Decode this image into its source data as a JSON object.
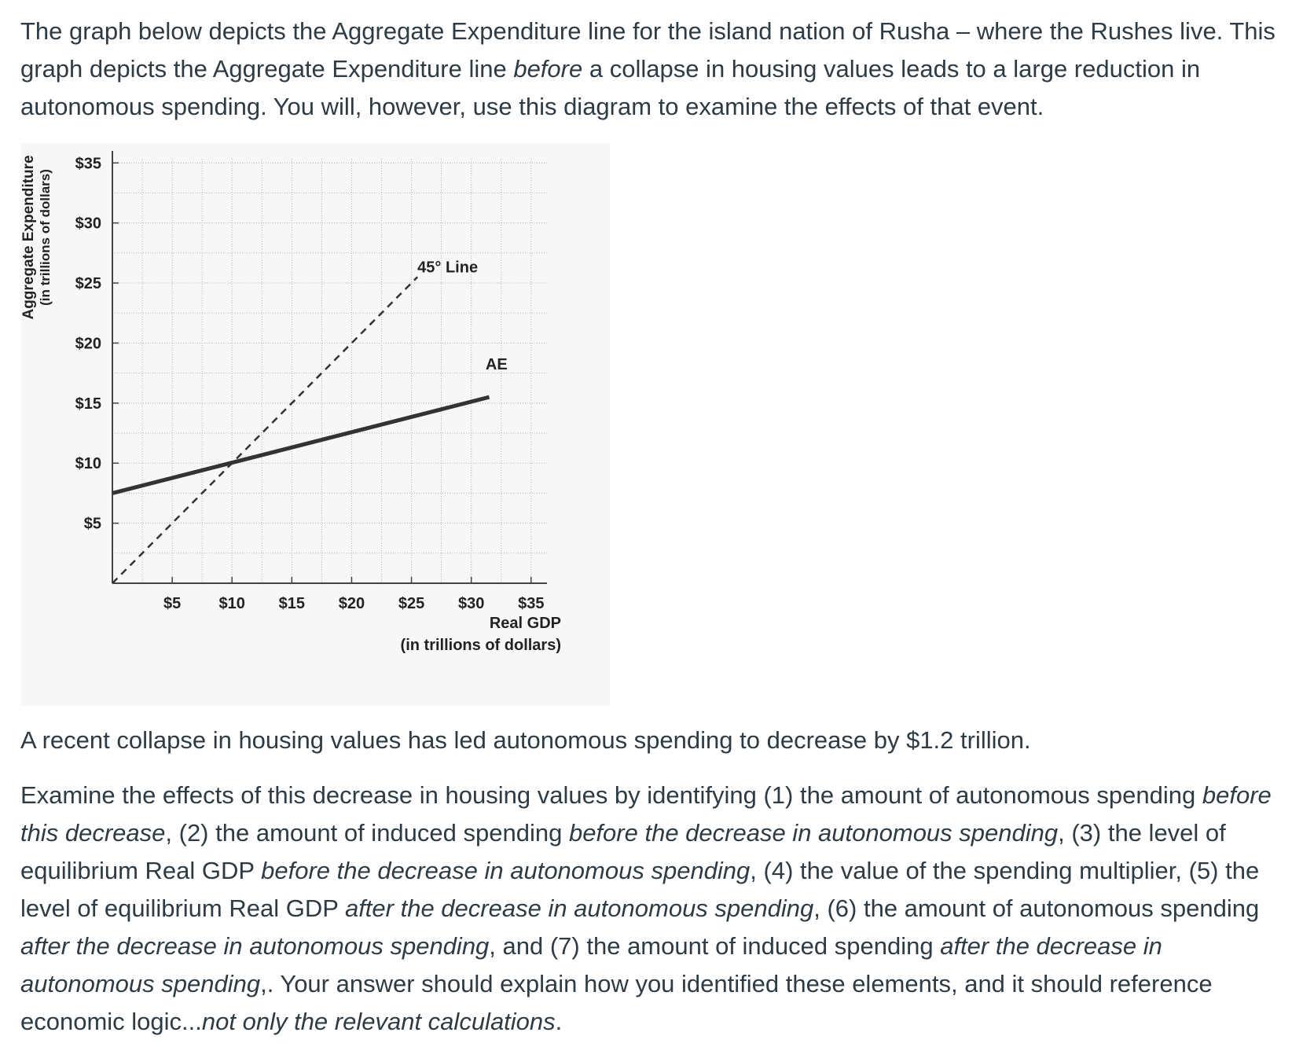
{
  "intro": {
    "p1": "The graph below depicts the Aggregate Expenditure line for the island nation of Rusha – where the Rushes live. This graph depicts the Aggregate Expenditure line ",
    "p1_em": "before",
    "p1_end": " a collapse in housing values leads to a large reduction in autonomous spending. You will, however, use this diagram to examine the effects of that event."
  },
  "recent": "A recent collapse in housing values has led autonomous spending to decrease by $1.2 trillion.",
  "question": {
    "s1": "Examine the effects of this decrease in housing values by identifying (1) the amount of autonomous spending ",
    "e1": "before this decrease",
    "s2": ", (2) the amount of induced spending ",
    "e2": "before the decrease in autonomous spending",
    "s3": ", (3) the level of equilibrium Real GDP ",
    "e3": "before the decrease in autonomous spending",
    "s4": ", (4) the value of the spending multiplier, (5) the level of equilibrium Real GDP ",
    "e4": "after the decrease in autonomous spending",
    "s5": ", (6) the amount of autonomous spending ",
    "e5": "after the decrease in autonomous spending",
    "s6": ", and (7) the amount of induced spending ",
    "e6": "after the decrease in autonomous spending",
    "s7": ",. Your answer should explain how you identified these elements, and it should reference economic logic...",
    "e7": "not only the relevant calculations",
    "s8": "."
  },
  "colors": {
    "text": "#2d3b45",
    "chart_bg": "#f7f7f7",
    "grid": "#b5b5b5",
    "line": "#333333"
  },
  "chart_data": {
    "type": "line",
    "title": "",
    "xlabel": "Real GDP",
    "xlabel_sub": "(in trillions of dollars)",
    "ylabel": "Aggregate Expenditure",
    "ylabel_sub": "(in trillions of dollars)",
    "x_ticks": [
      "$5",
      "$10",
      "$15",
      "$20",
      "$25",
      "$30",
      "$35"
    ],
    "y_ticks": [
      "$5",
      "$10",
      "$15",
      "$20",
      "$25",
      "$30",
      "$35"
    ],
    "xlim": [
      0,
      36
    ],
    "ylim": [
      0,
      36
    ],
    "grid": true,
    "series": [
      {
        "name": "AE",
        "style": "solid",
        "x": [
          0,
          31.5
        ],
        "y": [
          7.5,
          15.5
        ]
      },
      {
        "name": "45° Line",
        "style": "dashed",
        "x": [
          0,
          25.5
        ],
        "y": [
          0,
          25.5
        ]
      }
    ],
    "annotations": [
      "45° Line",
      "AE"
    ]
  }
}
